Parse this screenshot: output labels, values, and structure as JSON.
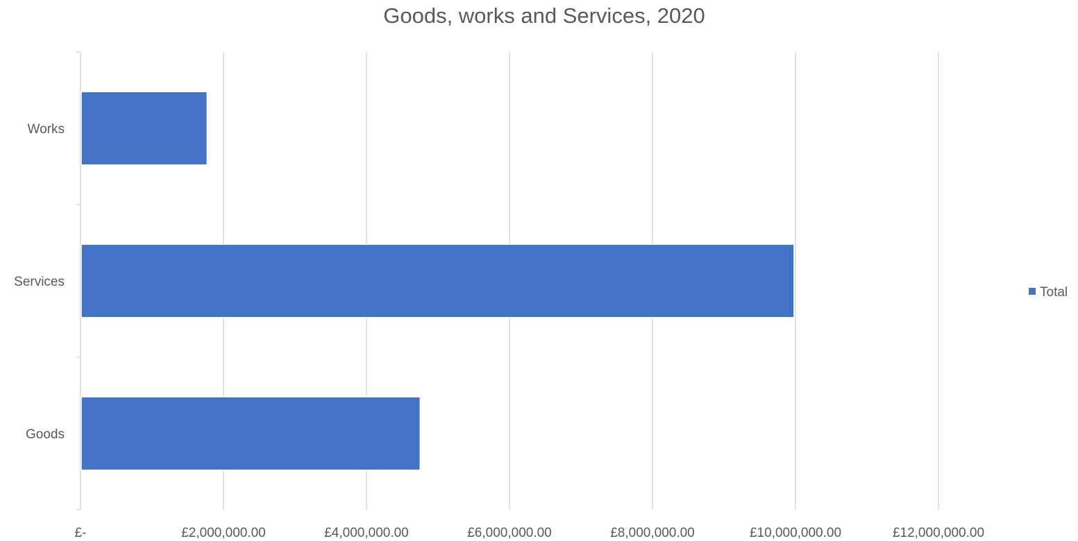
{
  "chart_data": {
    "type": "bar",
    "orientation": "horizontal",
    "title": "Goods, works and Services, 2020",
    "xlabel": "",
    "ylabel": "",
    "categories": [
      "Works",
      "Services",
      "Goods"
    ],
    "series": [
      {
        "name": "Total",
        "color": "#4472c4",
        "values": [
          1770000,
          9980000,
          4750000
        ]
      }
    ],
    "xlim": [
      0,
      12000000
    ],
    "x_ticks": [
      0,
      2000000,
      4000000,
      6000000,
      8000000,
      10000000,
      12000000
    ],
    "x_tick_labels": [
      "£-",
      "£2,000,000.00",
      "£4,000,000.00",
      "£6,000,000.00",
      "£8,000,000.00",
      "£10,000,000.00",
      "£12,000,000.00"
    ],
    "grid": "vertical",
    "legend_placement": "right"
  }
}
